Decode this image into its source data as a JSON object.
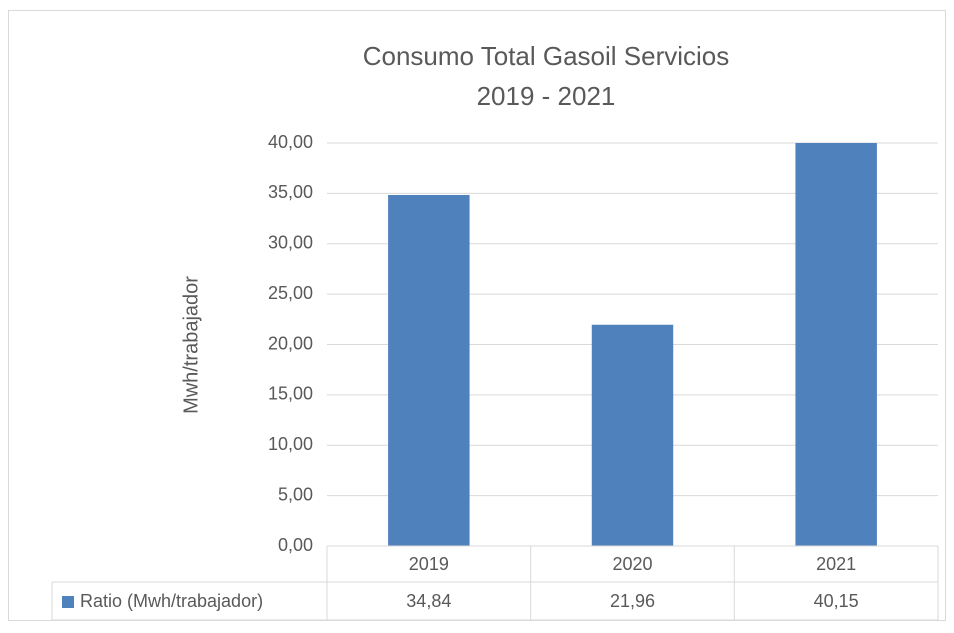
{
  "chart_data": {
    "type": "bar",
    "title": "Consumo Total Gasoil Servicios",
    "subtitle": "2019 - 2021",
    "y_label": "Mwh/trabajador",
    "categories": [
      "2019",
      "2020",
      "2021"
    ],
    "series": [
      {
        "name": "Ratio (Mwh/trabajador)",
        "color": "#4f81bd",
        "values": [
          34.84,
          21.96,
          40.15
        ],
        "value_labels": [
          "34,84",
          "21,96",
          "40,15"
        ]
      }
    ],
    "ylim": [
      0,
      40
    ],
    "yticks": [
      {
        "value": 0,
        "label": "0,00"
      },
      {
        "value": 5,
        "label": "5,00"
      },
      {
        "value": 10,
        "label": "10,00"
      },
      {
        "value": 15,
        "label": "15,00"
      },
      {
        "value": 20,
        "label": "20,00"
      },
      {
        "value": 25,
        "label": "25,00"
      },
      {
        "value": 30,
        "label": "30,00"
      },
      {
        "value": 35,
        "label": "35,00"
      },
      {
        "value": 40,
        "label": "40,00"
      }
    ],
    "grid": true,
    "data_table": true
  }
}
